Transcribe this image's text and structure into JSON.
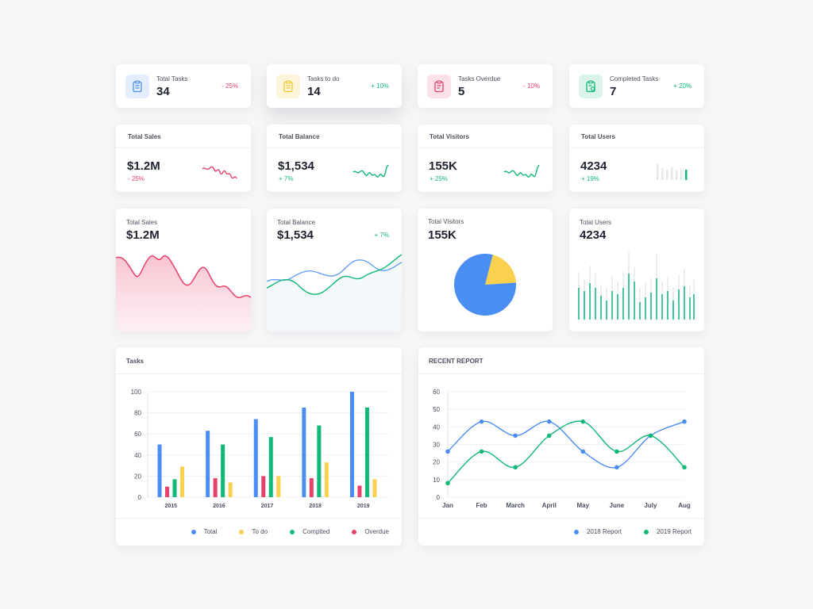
{
  "stats": [
    {
      "label": "Total Tasks",
      "value": "34",
      "change": "- 25%",
      "icon": "clipboard-icon",
      "color": "#4b8ef3",
      "bg": "#e3eefd",
      "change_color": "#e8416a"
    },
    {
      "label": "Tasks to do",
      "value": "14",
      "change": "+ 10%",
      "icon": "clipboard-list-icon",
      "color": "#f5c52d",
      "bg": "#fdf5d9",
      "change_color": "#11b876"
    },
    {
      "label": "Tasks Overdue",
      "value": "5",
      "change": "- 10%",
      "icon": "clipboard-alert-icon",
      "color": "#e8416a",
      "bg": "#fbe2e8",
      "change_color": "#e8416a"
    },
    {
      "label": "Completed Tasks",
      "value": "7",
      "change": "+ 20%",
      "icon": "clipboard-check-icon",
      "color": "#11b876",
      "bg": "#dcf5ea",
      "change_color": "#11b876"
    }
  ],
  "mini": [
    {
      "label": "Total Sales",
      "value": "$1.2M",
      "change": "- 25%",
      "color": "#e8416a"
    },
    {
      "label": "Total Balance",
      "value": "$1,534",
      "change": "+ 7%",
      "color": "#11b876"
    },
    {
      "label": "Total Visitors",
      "value": "155K",
      "change": "+ 25%",
      "color": "#11b876"
    },
    {
      "label": "Total Users",
      "value": "4234",
      "change": "+ 19%",
      "color": "#11b876"
    }
  ],
  "big": [
    {
      "label": "Total Sales",
      "value": "$1.2M"
    },
    {
      "label": "Total Balance",
      "value": "$1,534",
      "change": "+ 7%"
    },
    {
      "label": "Total Visitors",
      "value": "155K"
    },
    {
      "label": "Total Users",
      "value": "4234"
    }
  ],
  "visitors_pie": {
    "type": "pie",
    "values": [
      80,
      20
    ],
    "colors": [
      "#4b8ef3",
      "#f9d14f"
    ]
  },
  "tasks": {
    "title": "Tasks",
    "chart_data": {
      "type": "bar",
      "categories": [
        "2015",
        "2016",
        "2017",
        "2018",
        "2019"
      ],
      "ylim": [
        0,
        100
      ],
      "yticks": [
        0,
        20,
        40,
        60,
        80,
        100
      ],
      "series": [
        {
          "name": "Total",
          "color": "#4b8ef3",
          "values": [
            50,
            63,
            74,
            85,
            100
          ]
        },
        {
          "name": "Overdue",
          "color": "#e8416a",
          "values": [
            10,
            18,
            20,
            18,
            11
          ]
        },
        {
          "name": "Compited",
          "color": "#11b876",
          "values": [
            17,
            50,
            57,
            68,
            85
          ]
        },
        {
          "name": "To do",
          "color": "#f9d14f",
          "values": [
            29,
            14,
            20,
            33,
            17
          ]
        }
      ],
      "legend": [
        "Total",
        "To do",
        "Compited",
        "Overdue"
      ],
      "legend_colors": [
        "#4b8ef3",
        "#f9d14f",
        "#11b876",
        "#e8416a"
      ]
    }
  },
  "report": {
    "title": "RECENT REPORT",
    "chart_data": {
      "type": "line",
      "categories": [
        "Jan",
        "Feb",
        "March",
        "April",
        "May",
        "June",
        "July",
        "Aug"
      ],
      "ylim": [
        0,
        60
      ],
      "yticks": [
        0,
        10,
        20,
        30,
        40,
        50,
        60
      ],
      "series": [
        {
          "name": "2018 Report",
          "color": "#4b8ef3",
          "values": [
            26,
            43,
            35,
            43,
            26,
            17,
            35,
            43
          ]
        },
        {
          "name": "2019 Report",
          "color": "#11b876",
          "values": [
            8,
            26,
            17,
            35,
            43,
            26,
            35,
            17
          ]
        }
      ]
    }
  }
}
